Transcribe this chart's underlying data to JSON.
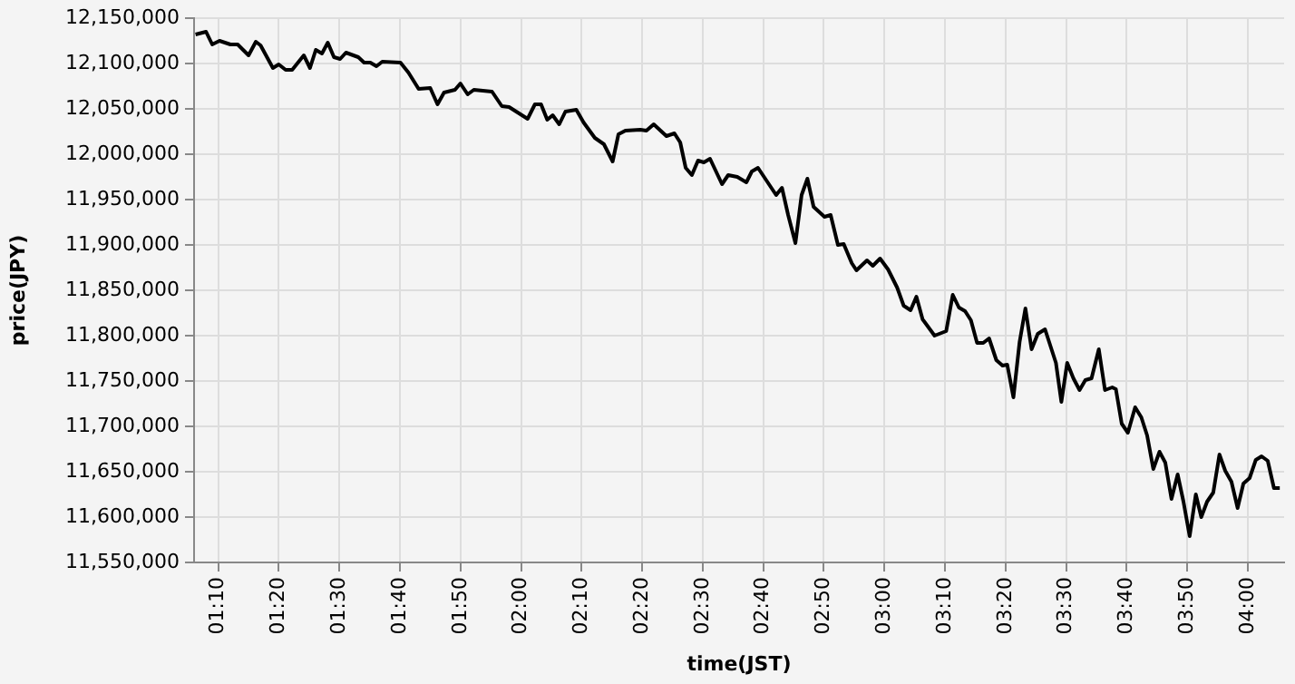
{
  "chart_data": {
    "type": "line",
    "xlabel": "time(JST)",
    "ylabel": "price(JPY)",
    "x": [
      1.104,
      1.133,
      1.15,
      1.17,
      1.2,
      1.22,
      1.25,
      1.27,
      1.283,
      1.317,
      1.333,
      1.352,
      1.37,
      1.402,
      1.419,
      1.435,
      1.452,
      1.468,
      1.485,
      1.502,
      1.518,
      1.552,
      1.568,
      1.585,
      1.602,
      1.618,
      1.668,
      1.69,
      1.718,
      1.75,
      1.77,
      1.788,
      1.818,
      1.833,
      1.853,
      1.87,
      1.92,
      1.947,
      1.967,
      2.018,
      2.038,
      2.055,
      2.072,
      2.087,
      2.105,
      2.122,
      2.152,
      2.172,
      2.203,
      2.228,
      2.252,
      2.268,
      2.287,
      2.328,
      2.345,
      2.365,
      2.4,
      2.422,
      2.438,
      2.453,
      2.47,
      2.487,
      2.503,
      2.52,
      2.553,
      2.57,
      2.595,
      2.62,
      2.635,
      2.652,
      2.702,
      2.718,
      2.735,
      2.755,
      2.772,
      2.788,
      2.805,
      2.835,
      2.852,
      2.872,
      2.888,
      2.91,
      2.923,
      2.952,
      2.968,
      2.988,
      3.01,
      3.035,
      3.053,
      3.072,
      3.088,
      3.105,
      3.138,
      3.17,
      3.188,
      3.205,
      3.222,
      3.238,
      3.255,
      3.272,
      3.288,
      3.308,
      3.325,
      3.338,
      3.355,
      3.372,
      3.388,
      3.405,
      3.422,
      3.442,
      3.472,
      3.487,
      3.503,
      3.52,
      3.537,
      3.553,
      3.57,
      3.59,
      3.607,
      3.627,
      3.637,
      3.653,
      3.67,
      3.69,
      3.707,
      3.723,
      3.74,
      3.757,
      3.773,
      3.79,
      3.807,
      3.823,
      3.84,
      3.857,
      3.872,
      3.888,
      3.905,
      3.922,
      3.938,
      3.955,
      3.972,
      3.988,
      4.005,
      4.022,
      4.038,
      4.055,
      4.072,
      4.088
    ],
    "series": [
      {
        "color": "#000000",
        "values": [
          12132000,
          12135000,
          12121000,
          12125000,
          12121000,
          12121000,
          12109000,
          12124000,
          12120000,
          12095000,
          12099000,
          12093000,
          12093000,
          12109000,
          12095000,
          12115000,
          12111000,
          12123000,
          12107000,
          12105000,
          12112000,
          12107000,
          12101000,
          12101000,
          12097000,
          12102000,
          12101000,
          12090000,
          12072000,
          12073000,
          12055000,
          12068000,
          12071000,
          12078000,
          12066000,
          12071000,
          12069000,
          12053000,
          12052000,
          12039000,
          12055000,
          12055000,
          12038000,
          12043000,
          12033000,
          12047000,
          12049000,
          12035000,
          12018000,
          12011000,
          11992000,
          12022000,
          12026000,
          12027000,
          12026000,
          12033000,
          12020000,
          12023000,
          12013000,
          11985000,
          11977000,
          11993000,
          11991000,
          11995000,
          11967000,
          11977000,
          11975000,
          11969000,
          11981000,
          11985000,
          11955000,
          11963000,
          11933000,
          11902000,
          11955000,
          11973000,
          11942000,
          11931000,
          11933000,
          11900000,
          11901000,
          11880000,
          11872000,
          11883000,
          11877000,
          11885000,
          11873000,
          11853000,
          11833000,
          11828000,
          11843000,
          11818000,
          11800000,
          11805000,
          11845000,
          11831000,
          11827000,
          11817000,
          11792000,
          11792000,
          11797000,
          11773000,
          11767000,
          11768000,
          11732000,
          11793000,
          11830000,
          11785000,
          11802000,
          11807000,
          11770000,
          11727000,
          11770000,
          11753000,
          11740000,
          11751000,
          11753000,
          11785000,
          11740000,
          11743000,
          11741000,
          11703000,
          11693000,
          11721000,
          11710000,
          11690000,
          11653000,
          11672000,
          11660000,
          11620000,
          11647000,
          11617000,
          11579000,
          11625000,
          11600000,
          11617000,
          11627000,
          11669000,
          11651000,
          11639000,
          11610000,
          11637000,
          11643000,
          11663000,
          11667000,
          11662000,
          11632000,
          11632000
        ]
      }
    ],
    "xlim": [
      1.1,
      4.1
    ],
    "xticks": [
      {
        "value": 1.1667,
        "label": "01:10"
      },
      {
        "value": 1.3333,
        "label": "01:20"
      },
      {
        "value": 1.5,
        "label": "01:30"
      },
      {
        "value": 1.6667,
        "label": "01:40"
      },
      {
        "value": 1.8333,
        "label": "01:50"
      },
      {
        "value": 2,
        "label": "02:00"
      },
      {
        "value": 2.1667,
        "label": "02:10"
      },
      {
        "value": 2.3333,
        "label": "02:20"
      },
      {
        "value": 2.5,
        "label": "02:30"
      },
      {
        "value": 2.6667,
        "label": "02:40"
      },
      {
        "value": 2.8333,
        "label": "02:50"
      },
      {
        "value": 3,
        "label": "03:00"
      },
      {
        "value": 3.1667,
        "label": "03:10"
      },
      {
        "value": 3.3333,
        "label": "03:20"
      },
      {
        "value": 3.5,
        "label": "03:30"
      },
      {
        "value": 3.6667,
        "label": "03:40"
      },
      {
        "value": 3.8333,
        "label": "03:50"
      },
      {
        "value": 4,
        "label": "04:00"
      }
    ],
    "ylim": [
      11550000,
      12150000
    ],
    "yticks": [
      {
        "value": 11550000,
        "label": "11,550,000"
      },
      {
        "value": 11600000,
        "label": "11,600,000"
      },
      {
        "value": 11650000,
        "label": "11,650,000"
      },
      {
        "value": 11700000,
        "label": "11,700,000"
      },
      {
        "value": 11750000,
        "label": "11,750,000"
      },
      {
        "value": 11800000,
        "label": "11,800,000"
      },
      {
        "value": 11850000,
        "label": "11,850,000"
      },
      {
        "value": 11900000,
        "label": "11,900,000"
      },
      {
        "value": 11950000,
        "label": "11,950,000"
      },
      {
        "value": 12000000,
        "label": "12,000,000"
      },
      {
        "value": 12050000,
        "label": "12,050,000"
      },
      {
        "value": 12100000,
        "label": "12,100,000"
      },
      {
        "value": 12150000,
        "label": "12,150,000"
      }
    ],
    "grid": true,
    "legend": false,
    "marker": "none",
    "line_style": "solid"
  }
}
